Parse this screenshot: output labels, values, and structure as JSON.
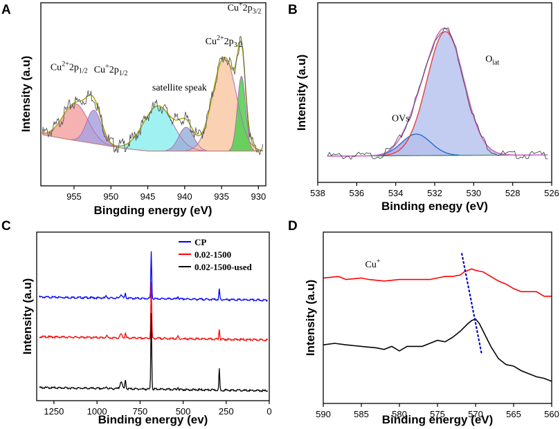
{
  "chart_data": [
    {
      "panel": "A",
      "type": "line",
      "title": "",
      "xlabel": "Bingding energy (eV)",
      "ylabel": "Intensity (a.u)",
      "xlim": [
        959.5,
        929
      ],
      "ylim": [
        0,
        100
      ],
      "xticks": [
        955,
        950,
        945,
        940,
        935,
        930
      ],
      "annotations": [
        {
          "text": "Cu²⁺2p₁/₂",
          "base": "Cu",
          "sup": "2+",
          "mid": "2p",
          "sub": "1/2",
          "x": 958.2,
          "y": 70
        },
        {
          "text": "Cu⁺2p₁/₂",
          "base": "Cu",
          "sup": "+",
          "mid": "2p",
          "sub": "1/2",
          "x": 952.3,
          "y": 68
        },
        {
          "text": "satellite speak",
          "x": 944.4,
          "y": 53
        },
        {
          "text": "Cu²⁺2p₃/₂",
          "base": "Cu",
          "sup": "2+",
          "mid": "2p",
          "sub": "3/2",
          "x": 937.2,
          "y": 92
        },
        {
          "text": "Cu⁺2p₃/₂",
          "base": "Cu",
          "sup": "+",
          "mid": "2p",
          "sub": "3/2",
          "x": 934.2,
          "y": 120
        }
      ],
      "background": [
        [
          959.5,
          16
        ],
        [
          956,
          12
        ],
        [
          952,
          8
        ],
        [
          948,
          4
        ],
        [
          945,
          2
        ],
        [
          940,
          2
        ],
        [
          935,
          2
        ],
        [
          929,
          2
        ]
      ],
      "peaks": [
        {
          "name": "Cu2+ 2p1/2",
          "center": 954.8,
          "sigma": 1.7,
          "height": 31,
          "color": "#f4a3a3"
        },
        {
          "name": "Cu+ 2p1/2",
          "center": 952.3,
          "sigma": 1.0,
          "height": 28,
          "color": "#a9a3e0"
        },
        {
          "name": "satellite 1",
          "center": 943.6,
          "sigma": 2.0,
          "height": 38,
          "color": "#8ff0f0"
        },
        {
          "name": "satellite 2",
          "center": 939.8,
          "sigma": 1.0,
          "height": 20,
          "color": "#9bb3d9"
        },
        {
          "name": "Cu2+ 2p3/2",
          "center": 934.6,
          "sigma": 1.6,
          "height": 79,
          "color": "#f9c9a4"
        },
        {
          "name": "Cu+ 2p3/2",
          "center": 932.3,
          "sigma": 0.55,
          "height": 63,
          "color": "#4fcf4f"
        }
      ],
      "edge_colors": {
        "background": "#c08080",
        "envelope": "#a8a800",
        "raw": "#555555"
      }
    },
    {
      "panel": "B",
      "type": "line",
      "title": "",
      "xlabel": "Binding enegy (eV)",
      "ylabel": "Intensity (a.u)",
      "xlim": [
        538,
        526
      ],
      "ylim": [
        0,
        100
      ],
      "xticks": [
        538,
        536,
        534,
        532,
        530,
        528,
        526
      ],
      "annotations": [
        {
          "text": "OVs",
          "x": 534.2,
          "y": 26
        },
        {
          "text": "Olat",
          "base": "O",
          "sub": "lat",
          "x": 529.4,
          "y": 70
        }
      ],
      "peaks": [
        {
          "name": "OVs",
          "center": 532.95,
          "sigma": 0.75,
          "height": 16,
          "color": "#aea6dc"
        },
        {
          "name": "Olat",
          "center": 531.45,
          "sigma": 0.95,
          "height": 92,
          "color": "#b9c3ef"
        }
      ],
      "edge_colors": {
        "background": "#2e8b57",
        "envelope": "#cc66cc",
        "raw": "#444444"
      }
    },
    {
      "panel": "C",
      "type": "line",
      "title": "",
      "xlabel": "Binding energy (ev)",
      "ylabel": "Intensity (a.u)",
      "xlim": [
        1350,
        0
      ],
      "ylim": [
        0,
        100
      ],
      "xticks": [
        1250,
        1000,
        750,
        500,
        250,
        0
      ],
      "legend": "top-right",
      "series": [
        {
          "name": "CP",
          "color": "#0000ff",
          "offset": 60,
          "peak685": 30,
          "peak_small": 3
        },
        {
          "name": "0.02-1500",
          "color": "#ff0000",
          "offset": 35,
          "peak685": 35,
          "peak_small": 3
        },
        {
          "name": "0.02-1500-used",
          "color": "#000000",
          "offset": 3,
          "peak685": 48,
          "peak_small": 6
        }
      ]
    },
    {
      "panel": "D",
      "type": "line",
      "title": "",
      "xlabel": "Binding energy (eV)",
      "ylabel": "Intensity (a.u)",
      "xlim": [
        590,
        560
      ],
      "ylim": [
        0,
        100
      ],
      "xticks": [
        590,
        585,
        580,
        575,
        570,
        565,
        560
      ],
      "annotations": [
        {
          "text": "Cu+",
          "base": "Cu",
          "sup": "+",
          "x": 584.5,
          "y": 85
        }
      ],
      "guide_line": {
        "x": [
          571.8,
          569.2
        ],
        "y": [
          94,
          28
        ],
        "color": "#0000cc"
      },
      "series": [
        {
          "name": "0.02-1500",
          "color": "#ff0000",
          "x": [
            590,
            588,
            587,
            585,
            584,
            582,
            580,
            578,
            576,
            575,
            574,
            573,
            572,
            571.5,
            571,
            570.5,
            570,
            569,
            568,
            567,
            566,
            565,
            564,
            562,
            561,
            560
          ],
          "y": [
            78,
            79,
            77,
            78,
            77,
            76,
            77,
            77,
            77,
            78,
            79,
            79,
            80,
            82,
            83,
            84,
            83,
            82,
            79,
            76,
            74,
            71,
            69,
            69,
            66,
            66
          ]
        },
        {
          "name": "0.02-1500-used",
          "color": "#000000",
          "x": [
            590,
            588.5,
            587,
            585,
            583,
            582,
            581,
            580,
            579,
            578,
            577,
            576,
            575,
            574,
            573,
            572,
            571,
            570.5,
            570,
            569.5,
            569,
            568,
            567,
            566,
            565,
            564,
            563,
            562,
            561,
            560
          ],
          "y": [
            34,
            35,
            34,
            33,
            32,
            31,
            33,
            30,
            33,
            33,
            33,
            35,
            37,
            36,
            39,
            43,
            48,
            50,
            51,
            48,
            43,
            33,
            25,
            21,
            20,
            17,
            15,
            13,
            12,
            10
          ]
        }
      ]
    }
  ]
}
